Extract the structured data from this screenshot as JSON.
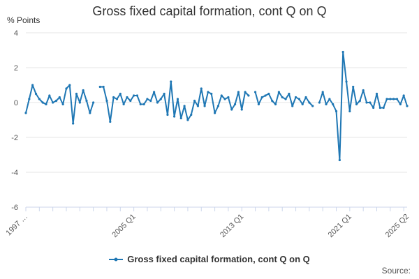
{
  "chart_data": {
    "type": "line",
    "title": "Gross fixed capital formation, cont Q on Q",
    "ylabel": "% Points",
    "xlabel": "",
    "ylim": [
      -6,
      4
    ],
    "yticks": [
      -6,
      -4,
      -2,
      0,
      2,
      4
    ],
    "x_tick_labels": [
      "1997 …",
      "2005 Q1",
      "2013 Q1",
      "2021 Q1",
      "2025 Q2"
    ],
    "series": [
      {
        "name": "Gross fixed capital formation, cont Q on Q",
        "color": "#1f77b4",
        "values": [
          -0.6,
          0.2,
          1.0,
          0.5,
          0.2,
          0.0,
          -0.1,
          0.4,
          0.0,
          0.1,
          0.3,
          -0.1,
          0.8,
          1.0,
          -1.2,
          0.5,
          0.0,
          0.7,
          0.1,
          -0.6,
          0.0,
          null,
          0.9,
          0.9,
          0.1,
          -1.1,
          0.3,
          0.2,
          0.5,
          -0.1,
          0.3,
          0.1,
          0.4,
          0.4,
          -0.1,
          -0.1,
          0.2,
          0.1,
          0.6,
          0.0,
          0.2,
          0.5,
          -0.7,
          1.2,
          -0.8,
          0.2,
          -0.9,
          -0.2,
          -1.0,
          -0.7,
          0.1,
          -0.2,
          0.8,
          -0.2,
          0.6,
          0.5,
          -0.6,
          -0.2,
          0.4,
          0.2,
          0.3,
          -0.4,
          -0.1,
          0.6,
          -0.4,
          0.6,
          0.4,
          null,
          0.6,
          -0.1,
          0.3,
          0.4,
          0.5,
          0.1,
          -0.1,
          0.6,
          0.3,
          0.2,
          0.5,
          -0.2,
          0.3,
          0.2,
          -0.1,
          0.3,
          0.0,
          -0.2,
          null,
          0.0,
          0.6,
          -0.1,
          0.2,
          -0.1,
          -0.5,
          -3.3,
          2.9,
          1.2,
          -0.5,
          0.9,
          -0.1,
          0.1,
          0.7,
          0.0,
          0.0,
          -0.3,
          0.5,
          -0.3,
          -0.3,
          0.2,
          0.2,
          0.2,
          0.2,
          -0.1,
          0.4,
          -0.2
        ]
      }
    ]
  },
  "legend": {
    "label": "Gross fixed capital formation, cont Q on Q"
  },
  "source": {
    "label": "Source:"
  }
}
